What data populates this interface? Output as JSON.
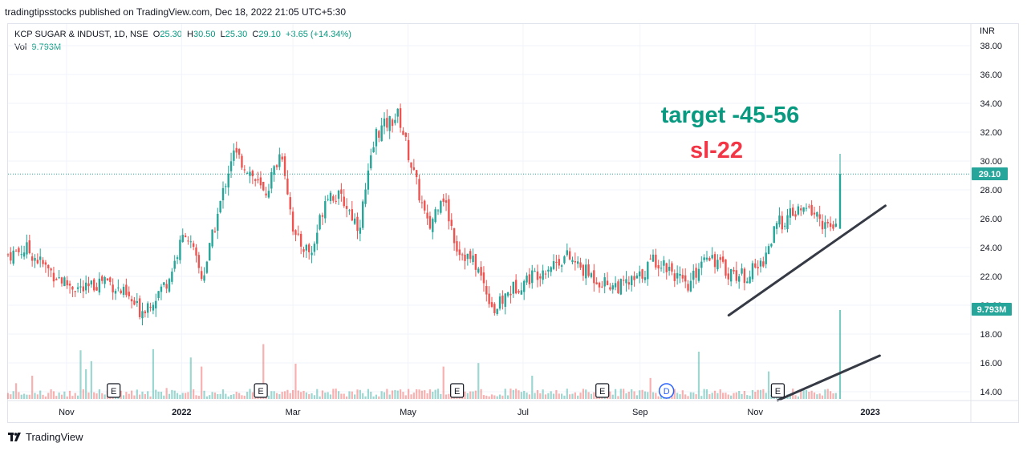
{
  "header": {
    "published_line": "tradingtipsstocks published on TradingView.com, Dec 18, 2022 21:05 UTC+5:30"
  },
  "legend": {
    "symbol": "KCP SUGAR & INDUST, 1D, NSE",
    "open_label": "O",
    "open": "25.30",
    "high_label": "H",
    "high": "30.50",
    "low_label": "L",
    "low": "25.30",
    "close_label": "C",
    "close": "29.10",
    "change": "+3.65 (+14.34%)",
    "vol_label": "Vol",
    "vol": "9.793M"
  },
  "currency": "INR",
  "annotations": {
    "target": "target -45-56",
    "stoploss": "sl-22"
  },
  "footer": {
    "brand": "TradingView"
  },
  "colors": {
    "up": "#26a69a",
    "down": "#ef5350",
    "up_text": "#089981",
    "target_text": "#089981",
    "sl_text": "#f23645",
    "last_price_badge": "#26a69a",
    "vol_badge": "#26a69a",
    "trendline": "#363a45"
  },
  "chart_data": {
    "type": "candlestick",
    "ylim": [
      13.4,
      39.0
    ],
    "y_ticks": [
      "38.00",
      "36.00",
      "34.00",
      "32.00",
      "30.00",
      "28.00",
      "26.00",
      "24.00",
      "22.00",
      "20.00",
      "18.00",
      "16.00",
      "14.00"
    ],
    "x_ticks": [
      "Nov",
      "2022",
      "Mar",
      "May",
      "Jul",
      "Sep",
      "Nov",
      "2023"
    ],
    "last_price": "29.10",
    "last_volume": "9.793M",
    "event_markers": [
      {
        "date": "2021-11-26",
        "label": "E"
      },
      {
        "date": "2022-02-12",
        "label": "E"
      },
      {
        "date": "2022-05-27",
        "label": "E"
      },
      {
        "date": "2022-08-12",
        "label": "E"
      },
      {
        "date": "2022-09-15",
        "label": "D"
      },
      {
        "date": "2022-11-13",
        "label": "E"
      }
    ],
    "close_series": [
      {
        "date": "2021-10-01",
        "close": 23.5
      },
      {
        "date": "2021-10-11",
        "close": 23.9
      },
      {
        "date": "2021-10-21",
        "close": 22.6
      },
      {
        "date": "2021-11-01",
        "close": 21.5
      },
      {
        "date": "2021-11-11",
        "close": 21.0
      },
      {
        "date": "2021-11-21",
        "close": 21.9
      },
      {
        "date": "2021-12-01",
        "close": 20.8
      },
      {
        "date": "2021-12-10",
        "close": 19.6
      },
      {
        "date": "2021-12-18",
        "close": 20.6
      },
      {
        "date": "2021-12-25",
        "close": 21.8
      },
      {
        "date": "2022-01-03",
        "close": 25.2
      },
      {
        "date": "2022-01-12",
        "close": 21.8
      },
      {
        "date": "2022-01-20",
        "close": 26.2
      },
      {
        "date": "2022-01-28",
        "close": 30.6
      },
      {
        "date": "2022-02-05",
        "close": 29.5
      },
      {
        "date": "2022-02-14",
        "close": 27.6
      },
      {
        "date": "2022-02-23",
        "close": 30.8
      },
      {
        "date": "2022-03-02",
        "close": 24.6
      },
      {
        "date": "2022-03-11",
        "close": 23.6
      },
      {
        "date": "2022-03-19",
        "close": 27.9
      },
      {
        "date": "2022-03-28",
        "close": 27.2
      },
      {
        "date": "2022-04-05",
        "close": 25.4
      },
      {
        "date": "2022-04-14",
        "close": 31.9
      },
      {
        "date": "2022-04-20",
        "close": 32.6
      },
      {
        "date": "2022-04-26",
        "close": 33.2
      },
      {
        "date": "2022-05-03",
        "close": 29.6
      },
      {
        "date": "2022-05-12",
        "close": 25.2
      },
      {
        "date": "2022-05-19",
        "close": 27.9
      },
      {
        "date": "2022-05-27",
        "close": 24.0
      },
      {
        "date": "2022-06-06",
        "close": 22.8
      },
      {
        "date": "2022-06-16",
        "close": 19.6
      },
      {
        "date": "2022-06-24",
        "close": 21.0
      },
      {
        "date": "2022-07-04",
        "close": 21.9
      },
      {
        "date": "2022-07-14",
        "close": 22.7
      },
      {
        "date": "2022-07-24",
        "close": 23.4
      },
      {
        "date": "2022-08-03",
        "close": 22.3
      },
      {
        "date": "2022-08-12",
        "close": 21.6
      },
      {
        "date": "2022-08-22",
        "close": 21.3
      },
      {
        "date": "2022-08-31",
        "close": 21.8
      },
      {
        "date": "2022-09-08",
        "close": 23.2
      },
      {
        "date": "2022-09-17",
        "close": 22.6
      },
      {
        "date": "2022-09-26",
        "close": 21.0
      },
      {
        "date": "2022-10-06",
        "close": 23.8
      },
      {
        "date": "2022-10-16",
        "close": 22.4
      },
      {
        "date": "2022-10-26",
        "close": 22.0
      },
      {
        "date": "2022-11-04",
        "close": 22.8
      },
      {
        "date": "2022-11-13",
        "close": 25.6
      },
      {
        "date": "2022-11-22",
        "close": 26.4
      },
      {
        "date": "2022-12-01",
        "close": 26.6
      },
      {
        "date": "2022-12-09",
        "close": 25.4
      },
      {
        "date": "2022-12-15",
        "close": 25.1
      },
      {
        "date": "2022-12-16",
        "close": 29.1
      }
    ],
    "trendlines": [
      {
        "from": {
          "date": "2022-10-18",
          "price": 19.3
        },
        "to": {
          "date": "2023-01-09",
          "price": 26.9
        }
      },
      {
        "from": {
          "date": "2022-11-13",
          "price": 13.4
        },
        "to": {
          "date": "2023-01-06",
          "price": 16.5
        }
      }
    ]
  }
}
